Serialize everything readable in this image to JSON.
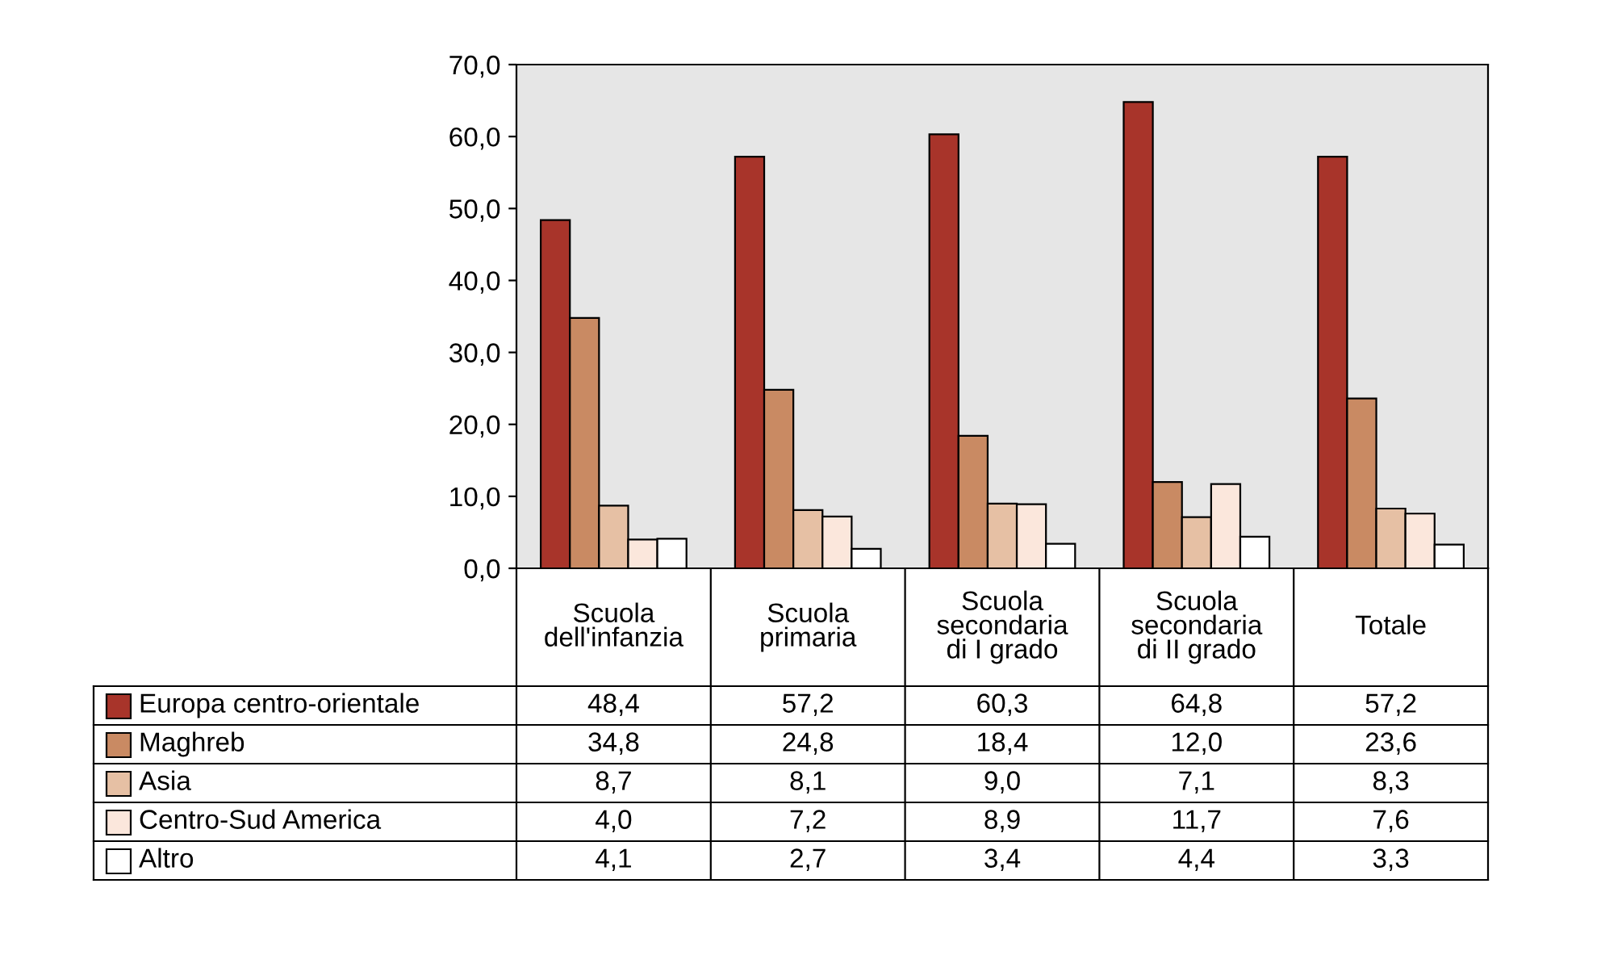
{
  "chart_data": {
    "type": "bar",
    "categories": [
      "Scuola dell'infanzia",
      "Scuola primaria",
      "Scuola secondaria di I grado",
      "Scuola secondaria di II grado",
      "Totale"
    ],
    "series": [
      {
        "name": "Europa centro-orientale",
        "color": "#a8342a",
        "values": [
          48.4,
          57.2,
          60.3,
          64.8,
          57.2
        ],
        "value_labels": [
          "48,4",
          "57,2",
          "60,3",
          "64,8",
          "57,2"
        ]
      },
      {
        "name": "Maghreb",
        "color": "#c98a63",
        "values": [
          34.8,
          24.8,
          18.4,
          12.0,
          23.6
        ],
        "value_labels": [
          "34,8",
          "24,8",
          "18,4",
          "12,0",
          "23,6"
        ]
      },
      {
        "name": "Asia",
        "color": "#e6c0a4",
        "values": [
          8.7,
          8.1,
          9.0,
          7.1,
          8.3
        ],
        "value_labels": [
          "8,7",
          "8,1",
          "9,0",
          "7,1",
          "8,3"
        ]
      },
      {
        "name": "Centro-Sud America",
        "color": "#fbe7dc",
        "values": [
          4.0,
          7.2,
          8.9,
          11.7,
          7.6
        ],
        "value_labels": [
          "4,0",
          "7,2",
          "8,9",
          "11,7",
          "7,6"
        ]
      },
      {
        "name": "Altro",
        "color": "#ffffff",
        "values": [
          4.1,
          2.7,
          3.4,
          4.4,
          3.3
        ],
        "value_labels": [
          "4,1",
          "2,7",
          "3,4",
          "4,4",
          "3,3"
        ]
      }
    ],
    "ylim": [
      0,
      70
    ],
    "yticks": [
      {
        "value": 0,
        "label": "0,0"
      },
      {
        "value": 10,
        "label": "10,0"
      },
      {
        "value": 20,
        "label": "20,0"
      },
      {
        "value": 30,
        "label": "30,0"
      },
      {
        "value": 40,
        "label": "40,0"
      },
      {
        "value": 50,
        "label": "50,0"
      },
      {
        "value": 60,
        "label": "60,0"
      },
      {
        "value": 70,
        "label": "70,0"
      }
    ],
    "grid": false,
    "legend": "bottom left"
  }
}
